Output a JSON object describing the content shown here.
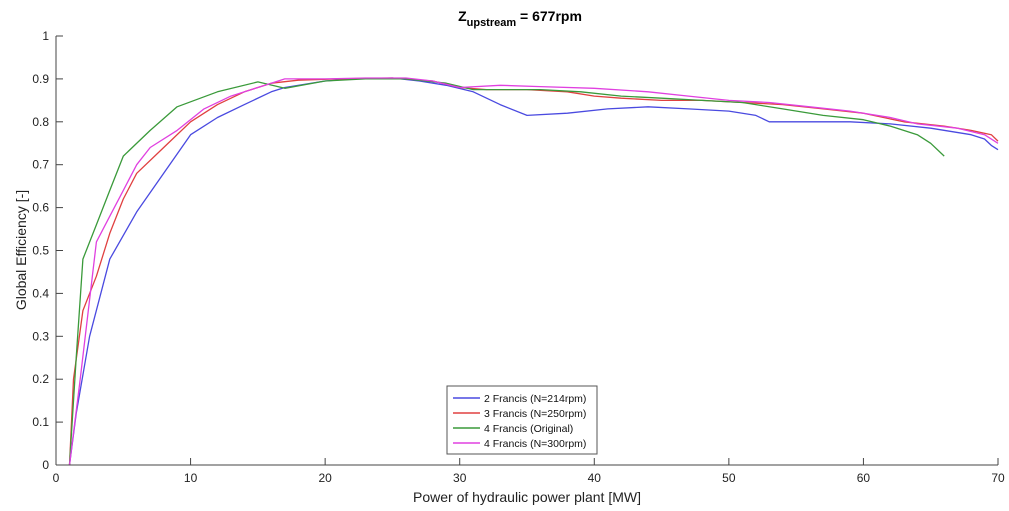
{
  "chart_data": {
    "type": "line",
    "title": {
      "prefix": "Z",
      "subscript": "upstream",
      "suffix": " = 677rpm"
    },
    "xlabel": "Power of hydraulic power plant [MW]",
    "ylabel": "Global Efficiency [-]",
    "xlim": [
      0,
      70
    ],
    "ylim": [
      0,
      1
    ],
    "xticks": [
      0,
      10,
      20,
      30,
      40,
      50,
      60,
      70
    ],
    "yticks": [
      0,
      0.1,
      0.2,
      0.3,
      0.4,
      0.5,
      0.6,
      0.7,
      0.8,
      0.9,
      1
    ],
    "ytick_labels": [
      "0",
      "0.1",
      "0.2",
      "0.3",
      "0.4",
      "0.5",
      "0.6",
      "0.7",
      "0.8",
      "0.9",
      "1"
    ],
    "grid": false,
    "legend_position": "bottom-center",
    "series": [
      {
        "name": "2 Francis (N=214rpm)",
        "color": "#4a4ae0",
        "points": [
          [
            1.0,
            0.0
          ],
          [
            1.5,
            0.12
          ],
          [
            2.5,
            0.3
          ],
          [
            4,
            0.48
          ],
          [
            6,
            0.59
          ],
          [
            8,
            0.68
          ],
          [
            10,
            0.77
          ],
          [
            12,
            0.81
          ],
          [
            14,
            0.84
          ],
          [
            16,
            0.87
          ],
          [
            17,
            0.88
          ],
          [
            20,
            0.895
          ],
          [
            22,
            0.9
          ],
          [
            25,
            0.902
          ],
          [
            27,
            0.895
          ],
          [
            29,
            0.885
          ],
          [
            31,
            0.87
          ],
          [
            33,
            0.84
          ],
          [
            35,
            0.815
          ],
          [
            38,
            0.82
          ],
          [
            41,
            0.83
          ],
          [
            44,
            0.835
          ],
          [
            47,
            0.83
          ],
          [
            50,
            0.825
          ],
          [
            52,
            0.815
          ],
          [
            53,
            0.8
          ],
          [
            56,
            0.8
          ],
          [
            59,
            0.8
          ],
          [
            62,
            0.795
          ],
          [
            65,
            0.785
          ],
          [
            68,
            0.77
          ],
          [
            69,
            0.76
          ],
          [
            69.5,
            0.745
          ],
          [
            70,
            0.735
          ]
        ]
      },
      {
        "name": "3 Francis (N=250rpm)",
        "color": "#e04040",
        "points": [
          [
            1.0,
            0.0
          ],
          [
            1.3,
            0.2
          ],
          [
            2,
            0.36
          ],
          [
            3,
            0.44
          ],
          [
            4,
            0.54
          ],
          [
            5,
            0.62
          ],
          [
            6,
            0.68
          ],
          [
            8,
            0.74
          ],
          [
            10,
            0.8
          ],
          [
            12,
            0.84
          ],
          [
            14,
            0.87
          ],
          [
            16,
            0.89
          ],
          [
            18,
            0.897
          ],
          [
            21,
            0.9
          ],
          [
            25,
            0.902
          ],
          [
            28,
            0.895
          ],
          [
            30,
            0.88
          ],
          [
            32,
            0.875
          ],
          [
            35,
            0.875
          ],
          [
            38,
            0.87
          ],
          [
            40,
            0.86
          ],
          [
            42,
            0.855
          ],
          [
            45,
            0.85
          ],
          [
            48,
            0.85
          ],
          [
            51,
            0.845
          ],
          [
            54,
            0.84
          ],
          [
            57,
            0.83
          ],
          [
            60,
            0.82
          ],
          [
            63,
            0.8
          ],
          [
            66,
            0.79
          ],
          [
            68,
            0.78
          ],
          [
            69.5,
            0.77
          ],
          [
            70,
            0.755
          ]
        ]
      },
      {
        "name": "4 Francis (Original)",
        "color": "#3a9a3a",
        "points": [
          [
            1.0,
            0.0
          ],
          [
            1.5,
            0.25
          ],
          [
            2,
            0.48
          ],
          [
            3,
            0.56
          ],
          [
            4,
            0.64
          ],
          [
            5,
            0.72
          ],
          [
            7,
            0.78
          ],
          [
            9,
            0.835
          ],
          [
            12,
            0.87
          ],
          [
            15,
            0.893
          ],
          [
            17,
            0.878
          ],
          [
            20,
            0.895
          ],
          [
            23,
            0.9
          ],
          [
            26,
            0.9
          ],
          [
            29,
            0.89
          ],
          [
            31,
            0.875
          ],
          [
            33,
            0.875
          ],
          [
            36,
            0.875
          ],
          [
            39,
            0.87
          ],
          [
            42,
            0.86
          ],
          [
            45,
            0.855
          ],
          [
            48,
            0.85
          ],
          [
            51,
            0.845
          ],
          [
            54,
            0.83
          ],
          [
            57,
            0.815
          ],
          [
            60,
            0.805
          ],
          [
            62,
            0.79
          ],
          [
            64,
            0.77
          ],
          [
            65,
            0.75
          ],
          [
            66,
            0.72
          ]
        ]
      },
      {
        "name": "4 Francis (N=300rpm)",
        "color": "#e040e0",
        "points": [
          [
            1.0,
            0.0
          ],
          [
            1.8,
            0.2
          ],
          [
            3,
            0.52
          ],
          [
            4,
            0.58
          ],
          [
            5,
            0.64
          ],
          [
            6,
            0.7
          ],
          [
            7,
            0.74
          ],
          [
            9,
            0.78
          ],
          [
            11,
            0.83
          ],
          [
            13,
            0.86
          ],
          [
            15,
            0.88
          ],
          [
            17,
            0.9
          ],
          [
            20,
            0.9
          ],
          [
            23,
            0.902
          ],
          [
            26,
            0.902
          ],
          [
            28,
            0.895
          ],
          [
            30,
            0.88
          ],
          [
            33,
            0.885
          ],
          [
            36,
            0.882
          ],
          [
            40,
            0.878
          ],
          [
            44,
            0.87
          ],
          [
            47,
            0.86
          ],
          [
            50,
            0.85
          ],
          [
            53,
            0.845
          ],
          [
            56,
            0.835
          ],
          [
            59,
            0.825
          ],
          [
            62,
            0.81
          ],
          [
            64,
            0.795
          ],
          [
            67,
            0.785
          ],
          [
            69,
            0.77
          ],
          [
            70,
            0.75
          ]
        ]
      }
    ]
  }
}
